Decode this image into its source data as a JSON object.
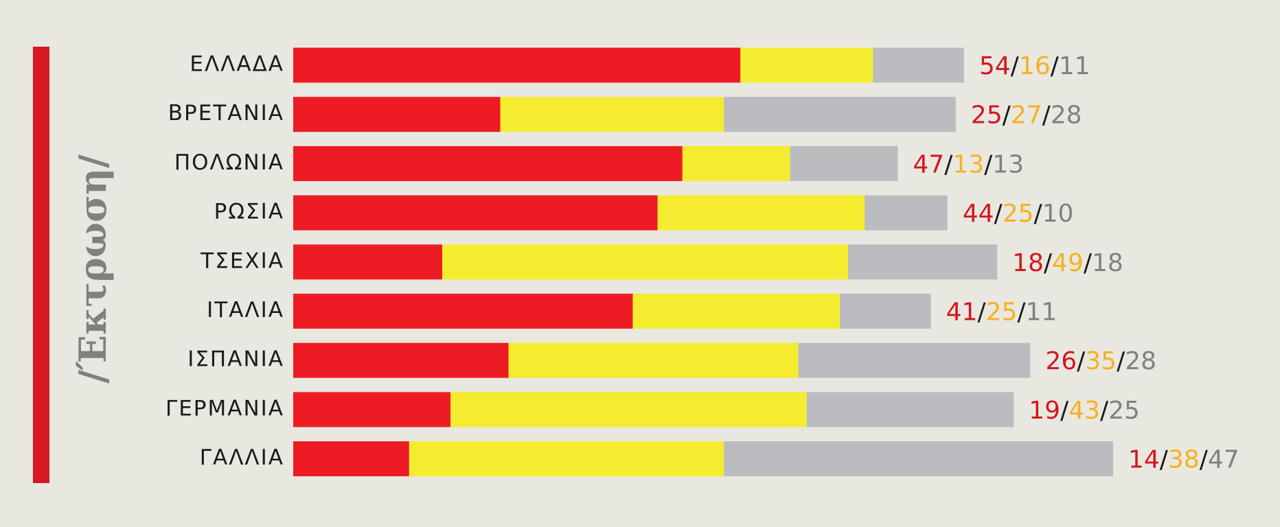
{
  "chart_data": {
    "type": "stacked-bar-horizontal",
    "title": "/Έκτρωση/",
    "categories": [
      "ΕΛΛΑΔΑ",
      "ΒΡΕΤΑΝΙΑ",
      "ΠΟΛΩΝΙΑ",
      "ΡΩΣΙΑ",
      "ΤΣΕΧΙΑ",
      "ΙΤΑΛΙΑ",
      "ΙΣΠΑΝΙΑ",
      "ΓΕΡΜΑΝΙΑ",
      "ΓΑΛΛΙΑ"
    ],
    "separator": "/",
    "series": [
      {
        "color": "#ed1c24",
        "label_color": "#d4161e",
        "values": [
          54,
          25,
          47,
          44,
          18,
          41,
          26,
          19,
          14
        ]
      },
      {
        "color": "#f5ec30",
        "label_color": "#f5b121",
        "values": [
          16,
          27,
          13,
          25,
          49,
          25,
          35,
          43,
          38
        ]
      },
      {
        "color": "#bbbcc0",
        "label_color": "#808080",
        "values": [
          11,
          28,
          13,
          10,
          18,
          11,
          28,
          25,
          47
        ]
      }
    ],
    "accent_color": "#d71920"
  }
}
